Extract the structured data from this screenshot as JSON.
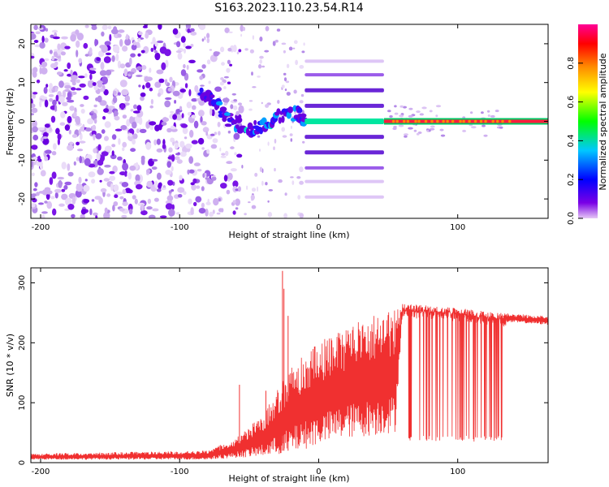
{
  "title": "S163.2023.110.23.54.R14",
  "chart_data": [
    {
      "type": "heatmap",
      "xlabel": "Height of straight line (km)",
      "ylabel": "Frequency (Hz)",
      "xlim": [
        -207,
        165
      ],
      "ylim": [
        -25,
        25
      ],
      "x_ticks": [
        -200,
        -100,
        0,
        100
      ],
      "y_ticks": [
        -20,
        -10,
        0,
        10,
        20
      ],
      "colorbar": {
        "label": "Normalized spectral amplitude",
        "range": [
          0,
          1
        ],
        "ticks": [
          "0.0",
          "0.2",
          "0.4",
          "0.6",
          "0.8"
        ],
        "colors": [
          "#e6c8f5",
          "#7a00e6",
          "#0000ff",
          "#00c8ff",
          "#00ff00",
          "#ffff00",
          "#ff8c00",
          "#ff0000",
          "#ff0096"
        ]
      },
      "features": {
        "noise_region_x": [
          -207,
          -85
        ],
        "descending_trace": [
          [
            -85,
            7
          ],
          [
            -75,
            5
          ],
          [
            -65,
            0
          ],
          [
            -50,
            -2
          ],
          [
            -40,
            -1
          ],
          [
            -30,
            1
          ],
          [
            -15,
            2
          ],
          [
            -10,
            0
          ]
        ],
        "harmonic_band_x": [
          -10,
          47
        ],
        "harmonic_frequencies": [
          -19.5,
          -15.5,
          -12,
          -8,
          -4,
          0,
          4,
          8,
          12,
          15.5
        ],
        "carrier_line": {
          "x": [
            47,
            165
          ],
          "y": 0
        }
      }
    },
    {
      "type": "line",
      "xlabel": "Height of straight line (km)",
      "ylabel": "SNR (10 * v/v)",
      "xlim": [
        -207,
        165
      ],
      "ylim": [
        0,
        325
      ],
      "x_ticks": [
        -200,
        -100,
        0,
        100
      ],
      "y_ticks": [
        0,
        100,
        200,
        300
      ],
      "series": [
        {
          "color": "#f03030",
          "envelope_x": [
            -207,
            -80,
            -60,
            -40,
            -20,
            0,
            20,
            40,
            55,
            60,
            80,
            100,
            130,
            165
          ],
          "envelope_high": [
            15,
            20,
            40,
            80,
            160,
            200,
            230,
            250,
            260,
            265,
            262,
            258,
            250,
            245
          ],
          "envelope_low": [
            5,
            5,
            8,
            10,
            15,
            30,
            40,
            45,
            50,
            240,
            245,
            240,
            235,
            230
          ],
          "dropouts_x": [
            60,
            135
          ],
          "dropout_floor": 35,
          "spikes": [
            [
              -57,
              130
            ],
            [
              -38,
              120
            ],
            [
              -26,
              320
            ],
            [
              -25,
              290
            ],
            [
              -22,
              245
            ]
          ]
        }
      ]
    }
  ]
}
